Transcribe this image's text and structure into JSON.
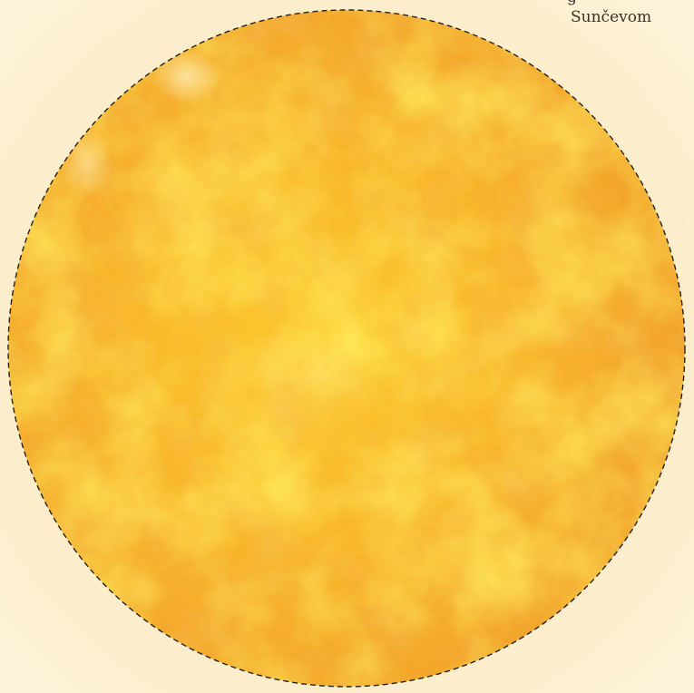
{
  "caption": {
    "line_top": "g",
    "line_main": "Sunčevom"
  },
  "colors": {
    "background_center": "#fbe4ad",
    "background_edge": "#fdf3db",
    "sun_bright": "#ffd21f",
    "sun_mid": "#f9b62a",
    "sun_dark": "#ef9a2b",
    "outline": "#222222"
  },
  "illustration": {
    "subject": "sun-disc-icon",
    "outline_style": "dashed"
  }
}
